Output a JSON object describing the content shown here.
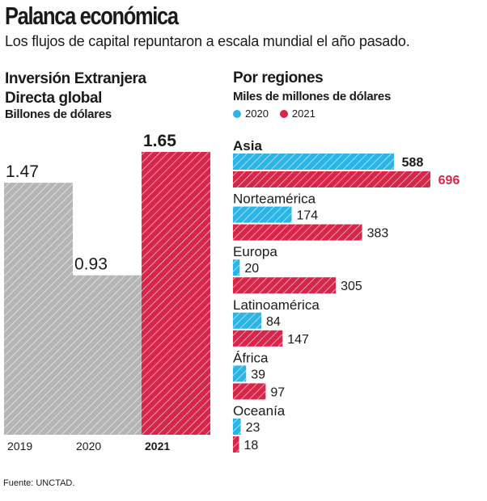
{
  "header": {
    "title": "Palanca económica",
    "subtitle": "Los flujos de capital repuntaron a escala mundial el año pasado."
  },
  "left_panel": {
    "title_line1": "Inversión Extranjera",
    "title_line2": "Directa global",
    "unit": "Billones de dólares"
  },
  "right_panel": {
    "title": "Por regiones",
    "unit": "Miles de millones de dólares",
    "legend": [
      {
        "label": "2020",
        "color": "#2bb5e6"
      },
      {
        "label": "2021",
        "color": "#d8264a"
      }
    ]
  },
  "colors": {
    "gray_bar": "#b5b5b5",
    "highlight_bar": "#d8264a",
    "series_2020": "#2bb5e6",
    "series_2021": "#d8264a",
    "hatch": "#ffffff"
  },
  "chart_data": [
    {
      "type": "bar",
      "title": "Inversión Extranjera Directa global",
      "ylabel": "Billones de dólares",
      "categories": [
        "2019",
        "2020",
        "2021"
      ],
      "values": [
        1.47,
        0.93,
        1.65
      ],
      "value_labels": [
        "1.47",
        "0.93",
        "1.65"
      ],
      "highlight": "2021",
      "ylim": [
        0,
        1.65
      ]
    },
    {
      "type": "bar",
      "orientation": "horizontal",
      "title": "Por regiones",
      "xlabel": "Miles de millones de dólares",
      "categories": [
        "Asia",
        "Norteamérica",
        "Europa",
        "Latinoamérica",
        "África",
        "Oceanía"
      ],
      "series": [
        {
          "name": "2020",
          "values": [
            588,
            174,
            20,
            84,
            39,
            23
          ]
        },
        {
          "name": "2021",
          "values": [
            696,
            383,
            305,
            147,
            97,
            18
          ]
        }
      ],
      "xlim": [
        0,
        696
      ]
    }
  ],
  "source": "Fuente: UNCTAD."
}
